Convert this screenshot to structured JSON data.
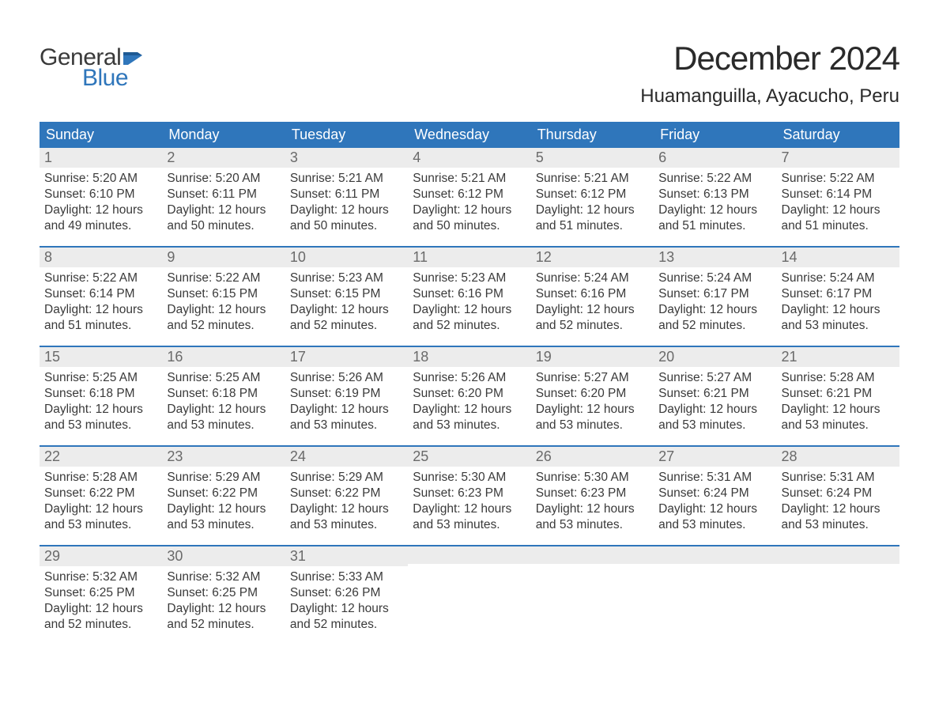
{
  "logo": {
    "text_general": "General",
    "text_blue": "Blue",
    "flag_color": "#2f76bb"
  },
  "title": "December 2024",
  "location": "Huamanguilla, Ayacucho, Peru",
  "colors": {
    "header_bg": "#2f76bb",
    "header_text": "#ffffff",
    "daynum_bg": "#ececec",
    "daynum_text": "#6a6a6a",
    "body_text": "#3a3a3a",
    "week_border": "#2f76bb",
    "page_bg": "#ffffff"
  },
  "typography": {
    "title_fontsize": 42,
    "location_fontsize": 24,
    "weekday_fontsize": 18,
    "daynum_fontsize": 18,
    "body_fontsize": 15.5
  },
  "weekdays": [
    "Sunday",
    "Monday",
    "Tuesday",
    "Wednesday",
    "Thursday",
    "Friday",
    "Saturday"
  ],
  "weeks": [
    [
      {
        "n": "1",
        "sunrise": "Sunrise: 5:20 AM",
        "sunset": "Sunset: 6:10 PM",
        "d1": "Daylight: 12 hours",
        "d2": "and 49 minutes."
      },
      {
        "n": "2",
        "sunrise": "Sunrise: 5:20 AM",
        "sunset": "Sunset: 6:11 PM",
        "d1": "Daylight: 12 hours",
        "d2": "and 50 minutes."
      },
      {
        "n": "3",
        "sunrise": "Sunrise: 5:21 AM",
        "sunset": "Sunset: 6:11 PM",
        "d1": "Daylight: 12 hours",
        "d2": "and 50 minutes."
      },
      {
        "n": "4",
        "sunrise": "Sunrise: 5:21 AM",
        "sunset": "Sunset: 6:12 PM",
        "d1": "Daylight: 12 hours",
        "d2": "and 50 minutes."
      },
      {
        "n": "5",
        "sunrise": "Sunrise: 5:21 AM",
        "sunset": "Sunset: 6:12 PM",
        "d1": "Daylight: 12 hours",
        "d2": "and 51 minutes."
      },
      {
        "n": "6",
        "sunrise": "Sunrise: 5:22 AM",
        "sunset": "Sunset: 6:13 PM",
        "d1": "Daylight: 12 hours",
        "d2": "and 51 minutes."
      },
      {
        "n": "7",
        "sunrise": "Sunrise: 5:22 AM",
        "sunset": "Sunset: 6:14 PM",
        "d1": "Daylight: 12 hours",
        "d2": "and 51 minutes."
      }
    ],
    [
      {
        "n": "8",
        "sunrise": "Sunrise: 5:22 AM",
        "sunset": "Sunset: 6:14 PM",
        "d1": "Daylight: 12 hours",
        "d2": "and 51 minutes."
      },
      {
        "n": "9",
        "sunrise": "Sunrise: 5:22 AM",
        "sunset": "Sunset: 6:15 PM",
        "d1": "Daylight: 12 hours",
        "d2": "and 52 minutes."
      },
      {
        "n": "10",
        "sunrise": "Sunrise: 5:23 AM",
        "sunset": "Sunset: 6:15 PM",
        "d1": "Daylight: 12 hours",
        "d2": "and 52 minutes."
      },
      {
        "n": "11",
        "sunrise": "Sunrise: 5:23 AM",
        "sunset": "Sunset: 6:16 PM",
        "d1": "Daylight: 12 hours",
        "d2": "and 52 minutes."
      },
      {
        "n": "12",
        "sunrise": "Sunrise: 5:24 AM",
        "sunset": "Sunset: 6:16 PM",
        "d1": "Daylight: 12 hours",
        "d2": "and 52 minutes."
      },
      {
        "n": "13",
        "sunrise": "Sunrise: 5:24 AM",
        "sunset": "Sunset: 6:17 PM",
        "d1": "Daylight: 12 hours",
        "d2": "and 52 minutes."
      },
      {
        "n": "14",
        "sunrise": "Sunrise: 5:24 AM",
        "sunset": "Sunset: 6:17 PM",
        "d1": "Daylight: 12 hours",
        "d2": "and 53 minutes."
      }
    ],
    [
      {
        "n": "15",
        "sunrise": "Sunrise: 5:25 AM",
        "sunset": "Sunset: 6:18 PM",
        "d1": "Daylight: 12 hours",
        "d2": "and 53 minutes."
      },
      {
        "n": "16",
        "sunrise": "Sunrise: 5:25 AM",
        "sunset": "Sunset: 6:18 PM",
        "d1": "Daylight: 12 hours",
        "d2": "and 53 minutes."
      },
      {
        "n": "17",
        "sunrise": "Sunrise: 5:26 AM",
        "sunset": "Sunset: 6:19 PM",
        "d1": "Daylight: 12 hours",
        "d2": "and 53 minutes."
      },
      {
        "n": "18",
        "sunrise": "Sunrise: 5:26 AM",
        "sunset": "Sunset: 6:20 PM",
        "d1": "Daylight: 12 hours",
        "d2": "and 53 minutes."
      },
      {
        "n": "19",
        "sunrise": "Sunrise: 5:27 AM",
        "sunset": "Sunset: 6:20 PM",
        "d1": "Daylight: 12 hours",
        "d2": "and 53 minutes."
      },
      {
        "n": "20",
        "sunrise": "Sunrise: 5:27 AM",
        "sunset": "Sunset: 6:21 PM",
        "d1": "Daylight: 12 hours",
        "d2": "and 53 minutes."
      },
      {
        "n": "21",
        "sunrise": "Sunrise: 5:28 AM",
        "sunset": "Sunset: 6:21 PM",
        "d1": "Daylight: 12 hours",
        "d2": "and 53 minutes."
      }
    ],
    [
      {
        "n": "22",
        "sunrise": "Sunrise: 5:28 AM",
        "sunset": "Sunset: 6:22 PM",
        "d1": "Daylight: 12 hours",
        "d2": "and 53 minutes."
      },
      {
        "n": "23",
        "sunrise": "Sunrise: 5:29 AM",
        "sunset": "Sunset: 6:22 PM",
        "d1": "Daylight: 12 hours",
        "d2": "and 53 minutes."
      },
      {
        "n": "24",
        "sunrise": "Sunrise: 5:29 AM",
        "sunset": "Sunset: 6:22 PM",
        "d1": "Daylight: 12 hours",
        "d2": "and 53 minutes."
      },
      {
        "n": "25",
        "sunrise": "Sunrise: 5:30 AM",
        "sunset": "Sunset: 6:23 PM",
        "d1": "Daylight: 12 hours",
        "d2": "and 53 minutes."
      },
      {
        "n": "26",
        "sunrise": "Sunrise: 5:30 AM",
        "sunset": "Sunset: 6:23 PM",
        "d1": "Daylight: 12 hours",
        "d2": "and 53 minutes."
      },
      {
        "n": "27",
        "sunrise": "Sunrise: 5:31 AM",
        "sunset": "Sunset: 6:24 PM",
        "d1": "Daylight: 12 hours",
        "d2": "and 53 minutes."
      },
      {
        "n": "28",
        "sunrise": "Sunrise: 5:31 AM",
        "sunset": "Sunset: 6:24 PM",
        "d1": "Daylight: 12 hours",
        "d2": "and 53 minutes."
      }
    ],
    [
      {
        "n": "29",
        "sunrise": "Sunrise: 5:32 AM",
        "sunset": "Sunset: 6:25 PM",
        "d1": "Daylight: 12 hours",
        "d2": "and 52 minutes."
      },
      {
        "n": "30",
        "sunrise": "Sunrise: 5:32 AM",
        "sunset": "Sunset: 6:25 PM",
        "d1": "Daylight: 12 hours",
        "d2": "and 52 minutes."
      },
      {
        "n": "31",
        "sunrise": "Sunrise: 5:33 AM",
        "sunset": "Sunset: 6:26 PM",
        "d1": "Daylight: 12 hours",
        "d2": "and 52 minutes."
      },
      null,
      null,
      null,
      null
    ]
  ]
}
